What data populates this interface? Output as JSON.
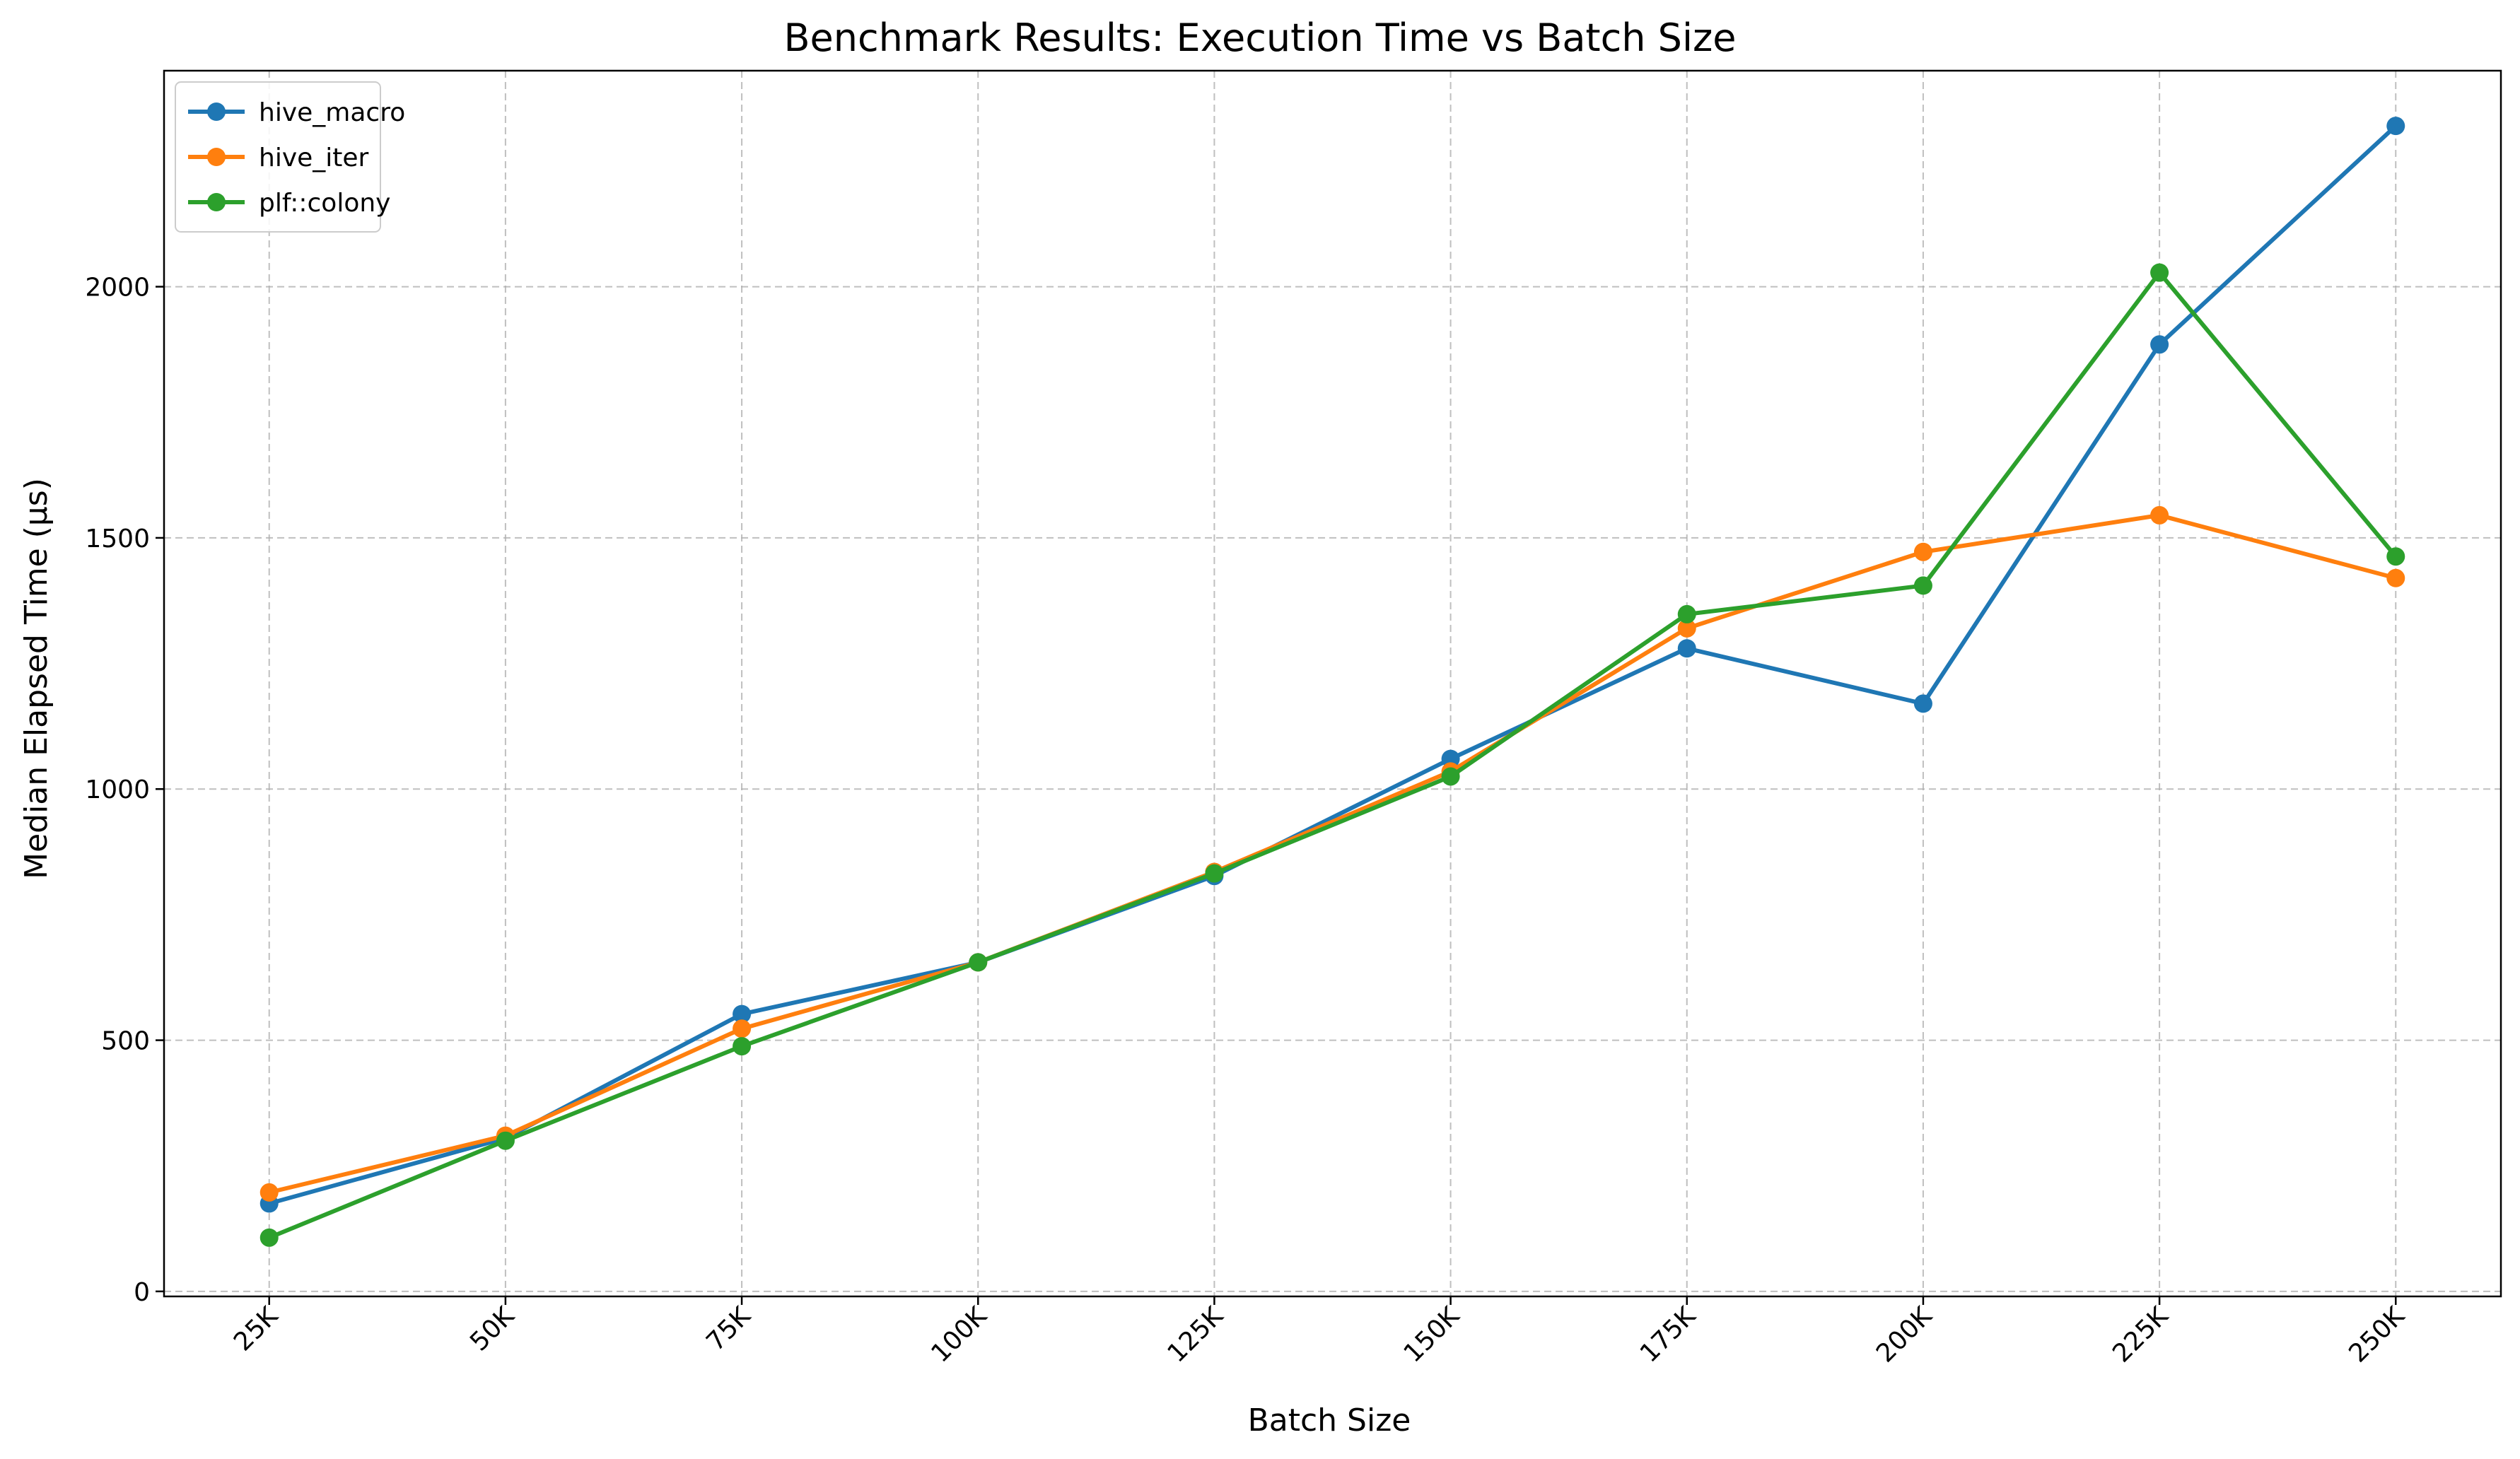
{
  "chart_data": {
    "type": "line",
    "title": "Benchmark Results: Execution Time vs Batch Size",
    "xlabel": "Batch Size",
    "ylabel": "Median Elapsed Time (μs)",
    "categories": [
      "25K",
      "50K",
      "75K",
      "100K",
      "125K",
      "150K",
      "175K",
      "200K",
      "225K",
      "250K"
    ],
    "y_ticks": [
      0,
      500,
      1000,
      1500,
      2000
    ],
    "ylim": [
      -10,
      2430
    ],
    "grid": true,
    "legend_position": "top-left",
    "series": [
      {
        "name": "hive_macro",
        "color": "#1f77b4",
        "values": [
          175,
          305,
          552,
          655,
          827,
          1060,
          1280,
          1170,
          1885,
          2320
        ]
      },
      {
        "name": "hive_iter",
        "color": "#ff7f0e",
        "values": [
          197,
          310,
          523,
          655,
          835,
          1035,
          1320,
          1472,
          1545,
          1420
        ]
      },
      {
        "name": "plf::colony",
        "color": "#2ca02c",
        "values": [
          107,
          300,
          488,
          655,
          832,
          1025,
          1348,
          1405,
          2028,
          1463
        ]
      }
    ]
  }
}
